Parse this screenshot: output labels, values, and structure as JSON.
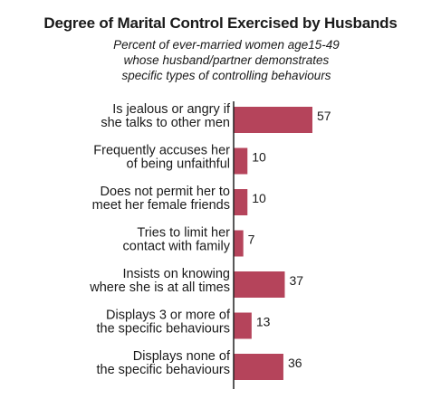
{
  "chart_data": {
    "type": "bar",
    "orientation": "horizontal",
    "title": "Degree of Marital Control Exercised by Husbands",
    "subtitle": [
      "Percent of ever-married women age15-49",
      "whose husband/partner demonstrates",
      "specific types of controlling behaviours"
    ],
    "categories": [
      [
        "Is jealous or angry if",
        "she talks to other men"
      ],
      [
        "Frequently accuses her",
        "of being unfaithful"
      ],
      [
        "Does not permit her to",
        "meet her female friends"
      ],
      [
        "Tries to limit her",
        "contact with family"
      ],
      [
        "Insists on knowing",
        "where she is at all times"
      ],
      [
        "Displays 3 or more of",
        "the specific behaviours"
      ],
      [
        "Displays none of",
        "the specific behaviours"
      ]
    ],
    "values": [
      57,
      10,
      10,
      7,
      37,
      13,
      36
    ],
    "bar_color": "#b5445b",
    "axis_color": "#222222",
    "xlim": [
      0,
      100
    ],
    "grid": false,
    "legend": "none"
  }
}
